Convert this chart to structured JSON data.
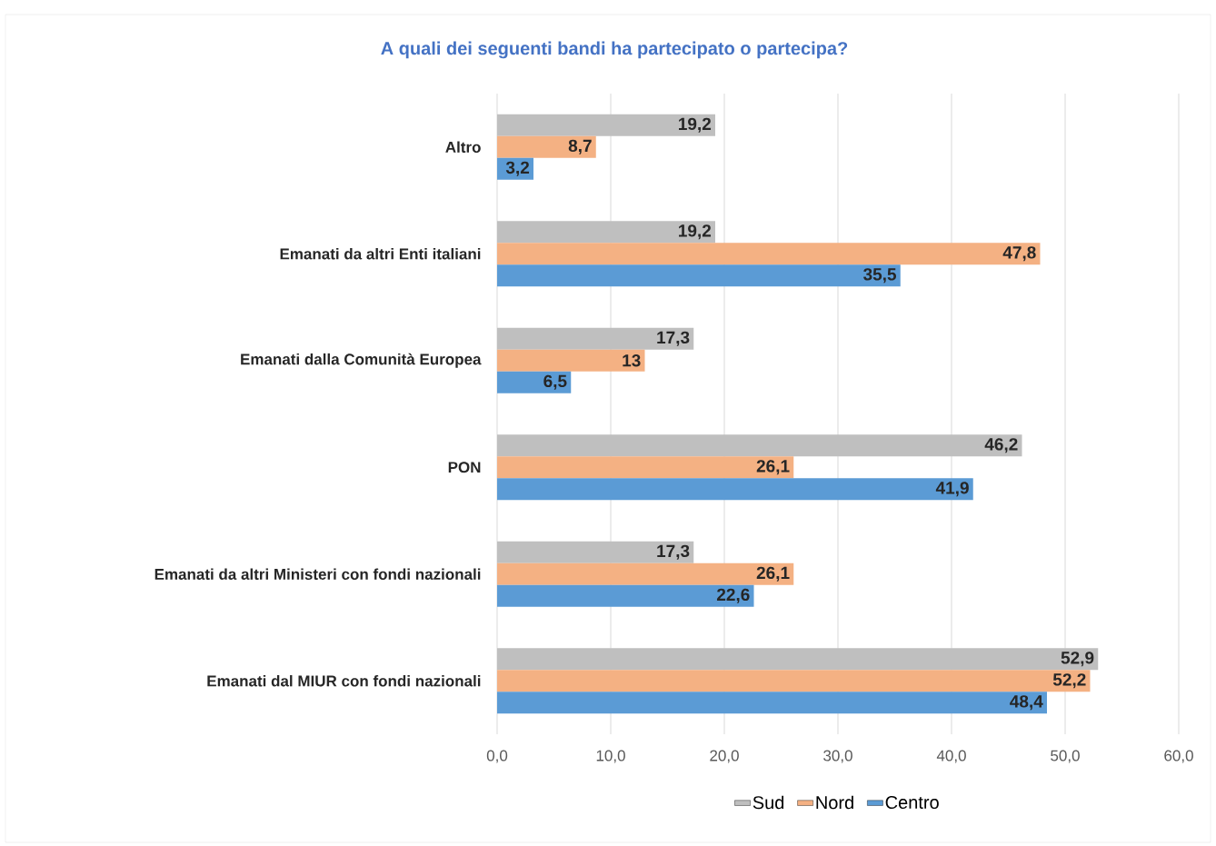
{
  "chart_data": {
    "type": "bar",
    "orientation": "horizontal",
    "title": "A quali dei seguenti bandi ha partecipato o partecipa?",
    "categories": [
      "Altro",
      "Emanati da altri Enti italiani",
      "Emanati dalla Comunità Europea",
      "PON",
      "Emanati da altri Ministeri con fondi nazionali",
      "Emanati dal MIUR con fondi nazionali"
    ],
    "series": [
      {
        "name": "Sud",
        "color": "#bfbfbf",
        "values": [
          19.2,
          19.2,
          17.3,
          46.2,
          17.3,
          52.9
        ],
        "value_labels": [
          "19,2",
          "19,2",
          "17,3",
          "46,2",
          "17,3",
          "52,9"
        ]
      },
      {
        "name": "Nord",
        "color": "#f4b183",
        "values": [
          8.7,
          47.8,
          13,
          26.1,
          26.1,
          52.2
        ],
        "value_labels": [
          "8,7",
          "47,8",
          "13",
          "26,1",
          "26,1",
          "52,2"
        ]
      },
      {
        "name": "Centro",
        "color": "#5b9bd5",
        "values": [
          3.2,
          35.5,
          6.5,
          41.9,
          22.6,
          48.4
        ],
        "value_labels": [
          "3,2",
          "35,5",
          "6,5",
          "41,9",
          "22,6",
          "48,4"
        ]
      }
    ],
    "xlim": [
      0,
      60
    ],
    "xticks": [
      {
        "value": 0,
        "label": "0,0"
      },
      {
        "value": 10,
        "label": "10,0"
      },
      {
        "value": 20,
        "label": "20,0"
      },
      {
        "value": 30,
        "label": "30,0"
      },
      {
        "value": 40,
        "label": "40,0"
      },
      {
        "value": 50,
        "label": "50,0"
      },
      {
        "value": 60,
        "label": "60,0"
      }
    ],
    "grid": "x",
    "legend": "bottom"
  }
}
